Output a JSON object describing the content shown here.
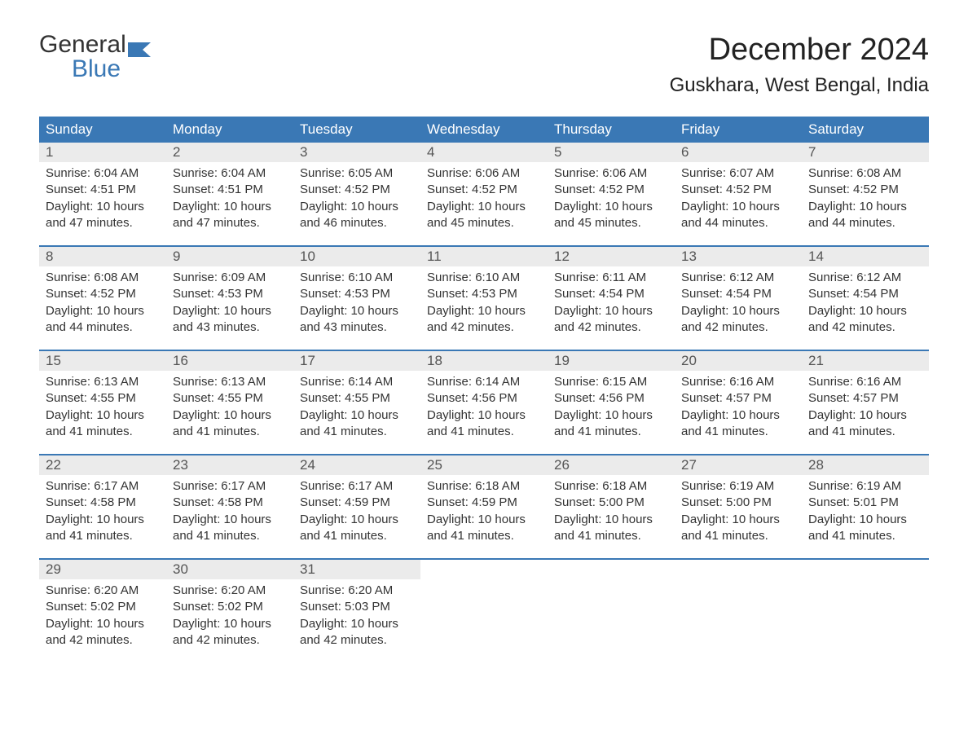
{
  "logo": {
    "text_top": "General",
    "text_bottom": "Blue",
    "flag_color": "#3a78b5",
    "top_color": "#333333",
    "bottom_color": "#3a78b5"
  },
  "header": {
    "month_title": "December 2024",
    "location": "Guskhara, West Bengal, India"
  },
  "colors": {
    "header_bg": "#3a78b5",
    "header_fg": "#ffffff",
    "daynum_bg": "#ebebeb",
    "daynum_fg": "#555555",
    "body_fg": "#333333",
    "week_separator": "#3a78b5",
    "page_bg": "#ffffff"
  },
  "weekdays": [
    "Sunday",
    "Monday",
    "Tuesday",
    "Wednesday",
    "Thursday",
    "Friday",
    "Saturday"
  ],
  "field_labels": {
    "sunrise": "Sunrise:",
    "sunset": "Sunset:",
    "daylight": "Daylight:"
  },
  "weeks": [
    [
      {
        "day": "1",
        "sunrise": "6:04 AM",
        "sunset": "4:51 PM",
        "daylight": "10 hours and 47 minutes."
      },
      {
        "day": "2",
        "sunrise": "6:04 AM",
        "sunset": "4:51 PM",
        "daylight": "10 hours and 47 minutes."
      },
      {
        "day": "3",
        "sunrise": "6:05 AM",
        "sunset": "4:52 PM",
        "daylight": "10 hours and 46 minutes."
      },
      {
        "day": "4",
        "sunrise": "6:06 AM",
        "sunset": "4:52 PM",
        "daylight": "10 hours and 45 minutes."
      },
      {
        "day": "5",
        "sunrise": "6:06 AM",
        "sunset": "4:52 PM",
        "daylight": "10 hours and 45 minutes."
      },
      {
        "day": "6",
        "sunrise": "6:07 AM",
        "sunset": "4:52 PM",
        "daylight": "10 hours and 44 minutes."
      },
      {
        "day": "7",
        "sunrise": "6:08 AM",
        "sunset": "4:52 PM",
        "daylight": "10 hours and 44 minutes."
      }
    ],
    [
      {
        "day": "8",
        "sunrise": "6:08 AM",
        "sunset": "4:52 PM",
        "daylight": "10 hours and 44 minutes."
      },
      {
        "day": "9",
        "sunrise": "6:09 AM",
        "sunset": "4:53 PM",
        "daylight": "10 hours and 43 minutes."
      },
      {
        "day": "10",
        "sunrise": "6:10 AM",
        "sunset": "4:53 PM",
        "daylight": "10 hours and 43 minutes."
      },
      {
        "day": "11",
        "sunrise": "6:10 AM",
        "sunset": "4:53 PM",
        "daylight": "10 hours and 42 minutes."
      },
      {
        "day": "12",
        "sunrise": "6:11 AM",
        "sunset": "4:54 PM",
        "daylight": "10 hours and 42 minutes."
      },
      {
        "day": "13",
        "sunrise": "6:12 AM",
        "sunset": "4:54 PM",
        "daylight": "10 hours and 42 minutes."
      },
      {
        "day": "14",
        "sunrise": "6:12 AM",
        "sunset": "4:54 PM",
        "daylight": "10 hours and 42 minutes."
      }
    ],
    [
      {
        "day": "15",
        "sunrise": "6:13 AM",
        "sunset": "4:55 PM",
        "daylight": "10 hours and 41 minutes."
      },
      {
        "day": "16",
        "sunrise": "6:13 AM",
        "sunset": "4:55 PM",
        "daylight": "10 hours and 41 minutes."
      },
      {
        "day": "17",
        "sunrise": "6:14 AM",
        "sunset": "4:55 PM",
        "daylight": "10 hours and 41 minutes."
      },
      {
        "day": "18",
        "sunrise": "6:14 AM",
        "sunset": "4:56 PM",
        "daylight": "10 hours and 41 minutes."
      },
      {
        "day": "19",
        "sunrise": "6:15 AM",
        "sunset": "4:56 PM",
        "daylight": "10 hours and 41 minutes."
      },
      {
        "day": "20",
        "sunrise": "6:16 AM",
        "sunset": "4:57 PM",
        "daylight": "10 hours and 41 minutes."
      },
      {
        "day": "21",
        "sunrise": "6:16 AM",
        "sunset": "4:57 PM",
        "daylight": "10 hours and 41 minutes."
      }
    ],
    [
      {
        "day": "22",
        "sunrise": "6:17 AM",
        "sunset": "4:58 PM",
        "daylight": "10 hours and 41 minutes."
      },
      {
        "day": "23",
        "sunrise": "6:17 AM",
        "sunset": "4:58 PM",
        "daylight": "10 hours and 41 minutes."
      },
      {
        "day": "24",
        "sunrise": "6:17 AM",
        "sunset": "4:59 PM",
        "daylight": "10 hours and 41 minutes."
      },
      {
        "day": "25",
        "sunrise": "6:18 AM",
        "sunset": "4:59 PM",
        "daylight": "10 hours and 41 minutes."
      },
      {
        "day": "26",
        "sunrise": "6:18 AM",
        "sunset": "5:00 PM",
        "daylight": "10 hours and 41 minutes."
      },
      {
        "day": "27",
        "sunrise": "6:19 AM",
        "sunset": "5:00 PM",
        "daylight": "10 hours and 41 minutes."
      },
      {
        "day": "28",
        "sunrise": "6:19 AM",
        "sunset": "5:01 PM",
        "daylight": "10 hours and 41 minutes."
      }
    ],
    [
      {
        "day": "29",
        "sunrise": "6:20 AM",
        "sunset": "5:02 PM",
        "daylight": "10 hours and 42 minutes."
      },
      {
        "day": "30",
        "sunrise": "6:20 AM",
        "sunset": "5:02 PM",
        "daylight": "10 hours and 42 minutes."
      },
      {
        "day": "31",
        "sunrise": "6:20 AM",
        "sunset": "5:03 PM",
        "daylight": "10 hours and 42 minutes."
      },
      null,
      null,
      null,
      null
    ]
  ]
}
